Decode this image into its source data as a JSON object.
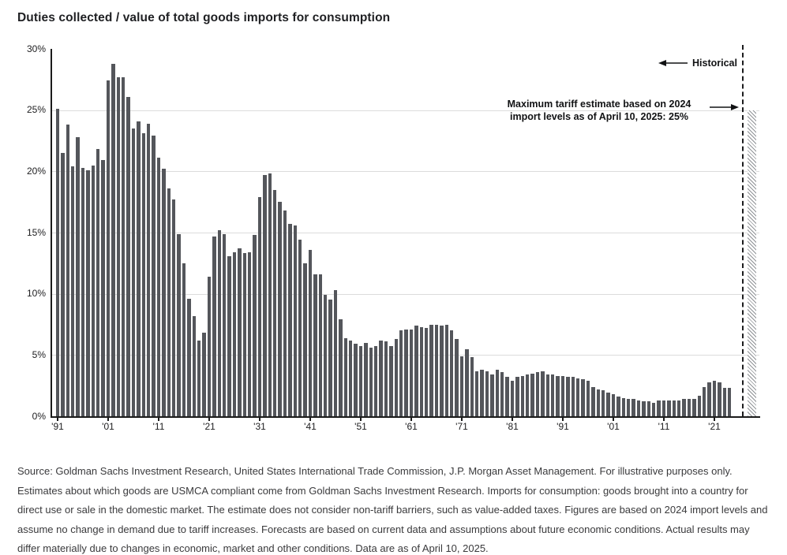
{
  "title": "Duties collected / value of total goods imports for consumption",
  "annotations": {
    "historical_label": "Historical",
    "estimate_line1": "Maximum tariff estimate based on 2024",
    "estimate_line2": "import levels as of April 10, 2025: 25%"
  },
  "footnote": "Source: Goldman Sachs Investment Research, United States International Trade Commission, J.P. Morgan Asset Management. For illustrative purposes only. Estimates about which goods are USMCA compliant come from Goldman Sachs Investment Research. Imports for consumption: goods brought into a country for direct use or sale in the domestic market. The estimate does not consider non-tariff barriers, such as value-added taxes. Figures are based on 2024 import levels and assume no change in demand due to tariff increases. Forecasts are based on current data and assumptions about future economic conditions. Actual results may differ materially due to changes in economic, market and other conditions. Data are as of April 10, 2025.",
  "chart_data": {
    "type": "bar",
    "title": "Duties collected / value of total goods imports for consumption",
    "unit": "percent",
    "grid": true,
    "bar_color": "#54565B",
    "ylim": [
      0,
      30
    ],
    "ytick_values": [
      0,
      5,
      10,
      15,
      20,
      25,
      30
    ],
    "ytick_labels": [
      "0%",
      "5%",
      "10%",
      "15%",
      "20%",
      "25%",
      "30%"
    ],
    "xticks": [
      {
        "label": "'91",
        "year": 1891
      },
      {
        "label": "'01",
        "year": 1901
      },
      {
        "label": "'11",
        "year": 1911
      },
      {
        "label": "'21",
        "year": 1921
      },
      {
        "label": "'31",
        "year": 1931
      },
      {
        "label": "'41",
        "year": 1941
      },
      {
        "label": "'51",
        "year": 1951
      },
      {
        "label": "'61",
        "year": 1961
      },
      {
        "label": "'71",
        "year": 1971
      },
      {
        "label": "'81",
        "year": 1981
      },
      {
        "label": "'91",
        "year": 1991
      },
      {
        "label": "'01",
        "year": 2001
      },
      {
        "label": "'11",
        "year": 2011
      },
      {
        "label": "'21",
        "year": 2021
      }
    ],
    "start_year": 1891,
    "end_year": 2024,
    "values": [
      25.1,
      21.5,
      23.8,
      20.4,
      22.8,
      20.3,
      20.1,
      20.5,
      21.8,
      20.9,
      27.4,
      28.8,
      27.7,
      27.7,
      26.1,
      23.5,
      24.1,
      23.1,
      23.9,
      22.9,
      21.1,
      20.2,
      18.6,
      17.7,
      14.9,
      12.5,
      9.6,
      8.2,
      6.2,
      6.8,
      11.4,
      14.7,
      15.2,
      14.9,
      13.1,
      13.4,
      13.7,
      13.3,
      13.4,
      14.8,
      17.9,
      19.7,
      19.8,
      18.5,
      17.5,
      16.8,
      15.7,
      15.6,
      14.4,
      12.5,
      13.6,
      11.6,
      11.6,
      9.9,
      9.5,
      10.3,
      7.9,
      6.4,
      6.2,
      5.9,
      5.7,
      6.0,
      5.6,
      5.7,
      6.2,
      6.1,
      5.7,
      6.3,
      7.0,
      7.1,
      7.1,
      7.4,
      7.3,
      7.2,
      7.5,
      7.5,
      7.4,
      7.5,
      7.0,
      6.3,
      4.9,
      5.5,
      4.8,
      3.7,
      3.8,
      3.7,
      3.4,
      3.8,
      3.6,
      3.2,
      2.9,
      3.2,
      3.3,
      3.4,
      3.5,
      3.6,
      3.7,
      3.4,
      3.4,
      3.3,
      3.3,
      3.2,
      3.2,
      3.1,
      3.0,
      2.9,
      2.4,
      2.2,
      2.1,
      1.9,
      1.8,
      1.6,
      1.5,
      1.4,
      1.4,
      1.3,
      1.2,
      1.2,
      1.1,
      1.3,
      1.3,
      1.3,
      1.3,
      1.3,
      1.4,
      1.4,
      1.4,
      1.7,
      2.4,
      2.8,
      2.9,
      2.8,
      2.3,
      2.3
    ],
    "estimate": {
      "label": "Maximum tariff estimate based on 2024 import levels as of April 10, 2025: 25%",
      "value": 25,
      "style": "hatched"
    },
    "divider": {
      "style": "dashed-vertical",
      "left_side_label": "Historical"
    },
    "legend_position": "none"
  }
}
